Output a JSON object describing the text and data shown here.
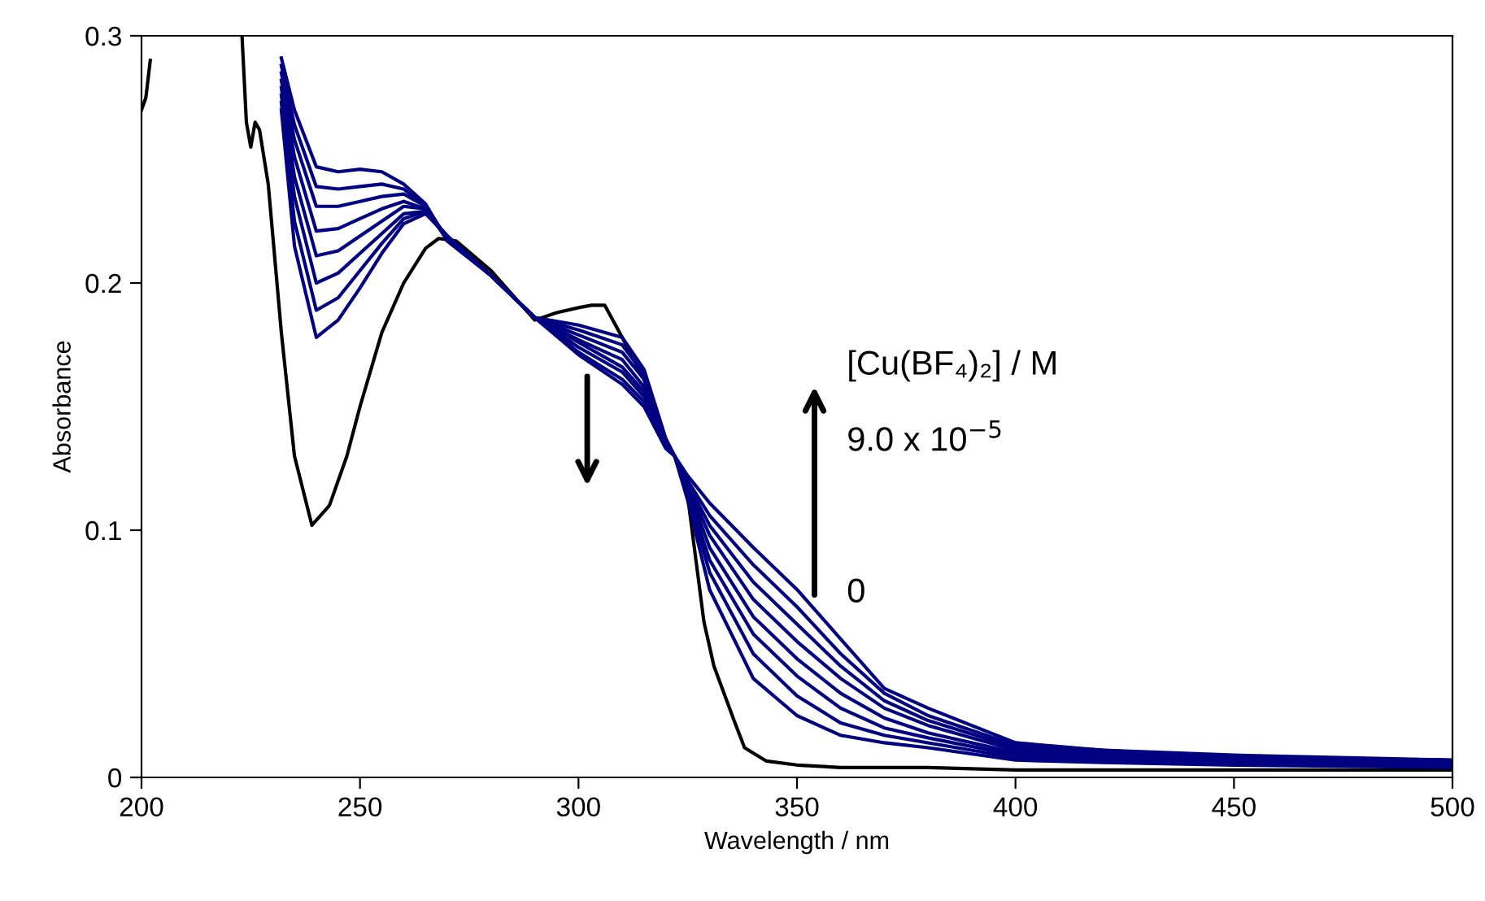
{
  "chart_data": {
    "type": "line",
    "xlabel": "Wavelength / nm",
    "ylabel": "Absorbance",
    "xlim": [
      200,
      500
    ],
    "ylim": [
      0,
      0.3
    ],
    "xticks": [
      200,
      250,
      300,
      350,
      400,
      450,
      500
    ],
    "yticks": [
      0,
      {
        "value": 0.1,
        "label": "0.1"
      },
      {
        "value": 0.2,
        "label": "0.2"
      },
      {
        "value": 0.3,
        "label": "0.3"
      }
    ],
    "grid": false,
    "legend": false,
    "marker": "none",
    "line_style": "solid",
    "annotations": [
      "[Cu(BF₄)₂] / M",
      "9.0 x 10$^{−5}$",
      "0"
    ],
    "series": [
      {
        "color": "#000000",
        "x": [
          200,
          201,
          202,
          203,
          223,
          224,
          225,
          226,
          227,
          229,
          232,
          235,
          239,
          243,
          247,
          250,
          255,
          260,
          265,
          268,
          272,
          280,
          290,
          295,
          300,
          303,
          306,
          310,
          315,
          320,
          322,
          324.6,
          326.5,
          328.7,
          331,
          335.6,
          338,
          343,
          350,
          360,
          380,
          400,
          450,
          500
        ],
        "values": [
          0.27,
          0.275,
          0.29,
          null,
          0.3,
          0.265,
          0.255,
          0.265,
          0.262,
          0.24,
          0.18,
          0.13,
          0.102,
          0.11,
          0.13,
          0.15,
          0.18,
          0.2,
          0.214,
          0.218,
          0.217,
          0.205,
          0.185,
          0.188,
          0.19,
          0.191,
          0.191,
          0.178,
          0.161,
          0.135,
          0.13,
          0.119,
          0.093,
          0.063,
          0.045,
          0.023,
          0.012,
          0.0066,
          0.005,
          0.004,
          0.004,
          0.003,
          0.003,
          0.003
        ]
      },
      {
        "color": "#000080",
        "x": [
          232,
          235,
          240,
          245,
          250,
          255,
          260,
          265,
          270,
          280,
          290,
          300,
          310,
          315,
          320,
          322,
          325,
          330,
          340,
          350,
          360,
          370,
          380,
          400,
          420,
          450,
          500
        ],
        "values": [
          0.27,
          0.215,
          0.178,
          0.185,
          0.198,
          0.212,
          0.224,
          0.228,
          0.219,
          0.203,
          0.186,
          0.183,
          0.178,
          0.165,
          0.137,
          0.13,
          0.112,
          0.076,
          0.04,
          0.025,
          0.017,
          0.014,
          0.012,
          0.007,
          0.006,
          0.005,
          0.004
        ]
      },
      {
        "color": "#000080",
        "x": [
          232,
          235,
          240,
          245,
          250,
          255,
          260,
          265,
          270,
          280,
          290,
          300,
          310,
          315,
          320,
          322,
          325,
          330,
          340,
          350,
          360,
          370,
          380,
          400,
          420,
          450,
          500
        ],
        "values": [
          0.273,
          0.225,
          0.189,
          0.194,
          0.205,
          0.216,
          0.226,
          0.229,
          0.219,
          0.203,
          0.186,
          0.181,
          0.175,
          0.163,
          0.136,
          0.13,
          0.114,
          0.083,
          0.05,
          0.033,
          0.022,
          0.017,
          0.014,
          0.008,
          0.007,
          0.006,
          0.005
        ]
      },
      {
        "color": "#000080",
        "x": [
          232,
          235,
          240,
          245,
          250,
          255,
          260,
          265,
          270,
          280,
          290,
          300,
          310,
          315,
          320,
          322,
          325,
          330,
          340,
          350,
          360,
          370,
          380,
          400,
          420,
          450,
          500
        ],
        "values": [
          0.276,
          0.235,
          0.2,
          0.204,
          0.212,
          0.22,
          0.228,
          0.229,
          0.218,
          0.203,
          0.186,
          0.179,
          0.172,
          0.161,
          0.136,
          0.13,
          0.115,
          0.088,
          0.058,
          0.041,
          0.028,
          0.02,
          0.016,
          0.009,
          0.007,
          0.006,
          0.005
        ]
      },
      {
        "color": "#000080",
        "x": [
          232,
          235,
          240,
          245,
          250,
          255,
          260,
          265,
          270,
          280,
          290,
          300,
          310,
          315,
          320,
          322,
          325,
          330,
          340,
          350,
          360,
          370,
          380,
          400,
          420,
          450,
          500
        ],
        "values": [
          0.279,
          0.243,
          0.211,
          0.213,
          0.219,
          0.225,
          0.231,
          0.23,
          0.218,
          0.203,
          0.186,
          0.177,
          0.169,
          0.158,
          0.135,
          0.13,
          0.117,
          0.093,
          0.065,
          0.048,
          0.034,
          0.024,
          0.018,
          0.01,
          0.008,
          0.007,
          0.005
        ]
      },
      {
        "color": "#000080",
        "x": [
          232,
          235,
          240,
          245,
          250,
          255,
          260,
          265,
          270,
          280,
          290,
          300,
          310,
          315,
          320,
          322,
          325,
          330,
          340,
          350,
          360,
          370,
          380,
          400,
          420,
          450,
          500
        ],
        "values": [
          0.282,
          0.251,
          0.221,
          0.222,
          0.226,
          0.23,
          0.233,
          0.23,
          0.218,
          0.203,
          0.186,
          0.176,
          0.166,
          0.156,
          0.135,
          0.13,
          0.118,
          0.098,
          0.072,
          0.055,
          0.04,
          0.028,
          0.021,
          0.011,
          0.009,
          0.007,
          0.006
        ]
      },
      {
        "color": "#000080",
        "x": [
          232,
          235,
          240,
          245,
          250,
          255,
          260,
          265,
          270,
          280,
          290,
          300,
          310,
          315,
          320,
          322,
          325,
          330,
          340,
          350,
          360,
          370,
          380,
          400,
          420,
          450,
          500
        ],
        "values": [
          0.285,
          0.258,
          0.231,
          0.231,
          0.233,
          0.235,
          0.236,
          0.231,
          0.218,
          0.203,
          0.186,
          0.174,
          0.164,
          0.154,
          0.134,
          0.13,
          0.119,
          0.102,
          0.079,
          0.062,
          0.045,
          0.031,
          0.023,
          0.012,
          0.01,
          0.008,
          0.006
        ]
      },
      {
        "color": "#000080",
        "x": [
          232,
          235,
          240,
          245,
          250,
          255,
          260,
          265,
          270,
          280,
          290,
          300,
          310,
          315,
          320,
          322,
          325,
          330,
          340,
          350,
          360,
          370,
          380,
          400,
          420,
          450,
          500
        ],
        "values": [
          0.288,
          0.264,
          0.239,
          0.238,
          0.239,
          0.24,
          0.238,
          0.231,
          0.217,
          0.203,
          0.186,
          0.172,
          0.161,
          0.152,
          0.134,
          0.13,
          0.12,
          0.106,
          0.086,
          0.069,
          0.05,
          0.034,
          0.025,
          0.013,
          0.011,
          0.008,
          0.007
        ]
      },
      {
        "color": "#000080",
        "x": [
          232,
          235,
          240,
          245,
          250,
          255,
          260,
          265,
          270,
          280,
          290,
          300,
          310,
          315,
          320,
          322,
          325,
          330,
          340,
          350,
          360,
          370,
          380,
          400,
          420,
          450,
          500
        ],
        "values": [
          0.291,
          0.27,
          0.247,
          0.245,
          0.246,
          0.245,
          0.24,
          0.232,
          0.217,
          0.203,
          0.186,
          0.171,
          0.159,
          0.15,
          0.133,
          0.13,
          0.122,
          0.111,
          0.093,
          0.076,
          0.056,
          0.036,
          0.028,
          0.014,
          0.011,
          0.009,
          0.007
        ]
      }
    ]
  }
}
